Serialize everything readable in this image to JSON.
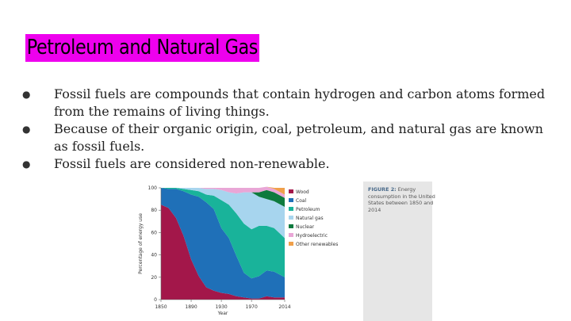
{
  "slide": {
    "title": "Petroleum and Natural Gas",
    "bullets": [
      "Fossil fuels are compounds that contain hydrogen and carbon atoms formed from the remains of living things.",
      "Because of their organic origin, coal, petroleum, and natural gas are known as fossil fuels.",
      "Fossil fuels are considered non-renewable."
    ]
  },
  "figure": {
    "caption_label": "FIGURE 2:",
    "caption_text": "Energy consumption in the United States between 1850 and 2014"
  },
  "chart_data": {
    "type": "area",
    "stacked": true,
    "xlabel": "Year",
    "ylabel": "Percentage of energy use",
    "xlim": [
      1850,
      2014
    ],
    "ylim": [
      0,
      100
    ],
    "xticks": [
      "1850",
      "1890",
      "1930",
      "1970",
      "2014"
    ],
    "yticks": [
      "0",
      "20",
      "40",
      "60",
      "80",
      "100"
    ],
    "legend_position": "right",
    "x": [
      1850,
      1860,
      1870,
      1880,
      1890,
      1900,
      1910,
      1920,
      1930,
      1940,
      1950,
      1960,
      1970,
      1980,
      1990,
      2000,
      2014
    ],
    "series": [
      {
        "name": "Wood",
        "color": "#a3174a",
        "values": [
          85,
          82,
          73,
          57,
          36,
          21,
          11,
          8,
          6,
          5,
          3,
          2,
          1,
          1,
          3,
          2,
          2
        ]
      },
      {
        "name": "Coal",
        "color": "#1f70b8",
        "values": [
          15,
          17,
          26,
          40,
          58,
          71,
          76,
          73,
          58,
          50,
          36,
          22,
          18,
          20,
          23,
          23,
          18
        ]
      },
      {
        "name": "Petroleum",
        "color": "#19b39a",
        "values": [
          0,
          1,
          1,
          2,
          4,
          5,
          7,
          12,
          25,
          30,
          38,
          44,
          44,
          45,
          40,
          39,
          35
        ]
      },
      {
        "name": "Natural gas",
        "color": "#a7d5ee",
        "values": [
          0,
          0,
          0,
          1,
          2,
          3,
          5,
          6,
          9,
          11,
          18,
          28,
          33,
          26,
          24,
          24,
          28
        ]
      },
      {
        "name": "Nuclear",
        "color": "#0d7a3e",
        "values": [
          0,
          0,
          0,
          0,
          0,
          0,
          0,
          0,
          0,
          0,
          0,
          0,
          0,
          4,
          8,
          8,
          8
        ]
      },
      {
        "name": "Hydroelectric",
        "color": "#e9a6d6",
        "values": [
          0,
          0,
          0,
          0,
          0,
          0,
          1,
          1,
          2,
          4,
          5,
          4,
          4,
          4,
          3,
          3,
          3
        ]
      },
      {
        "name": "Other renewables",
        "color": "#f0a04b",
        "values": [
          0,
          0,
          0,
          0,
          0,
          0,
          0,
          0,
          0,
          0,
          0,
          0,
          0,
          0,
          0,
          1,
          6
        ]
      }
    ]
  }
}
